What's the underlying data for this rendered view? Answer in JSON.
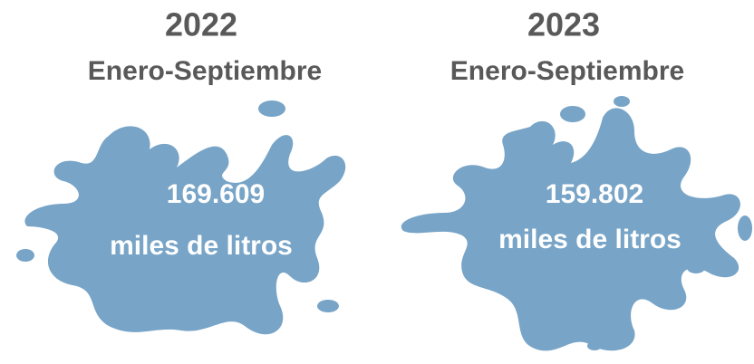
{
  "panels": [
    {
      "year": "2022",
      "period": "Enero-Septiembre",
      "value": "169.609",
      "unit": "miles de litros"
    },
    {
      "year": "2023",
      "period": "Enero-Septiembre",
      "value": "159.802",
      "unit": "miles de litros"
    }
  ]
}
